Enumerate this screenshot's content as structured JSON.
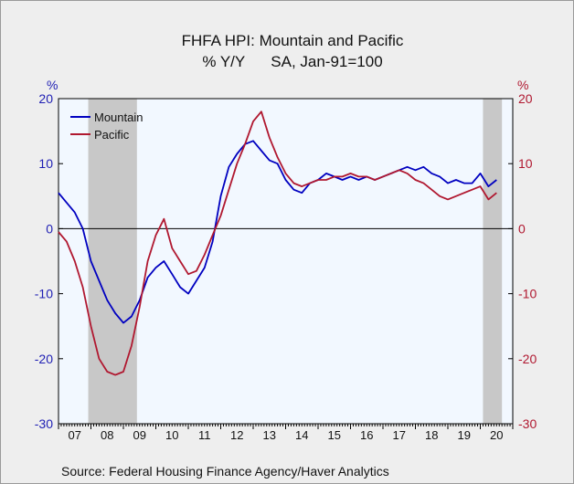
{
  "chart_data": {
    "type": "line",
    "title": "FHFA HPI: Mountain and Pacific",
    "subtitle": "% Y/Y      SA, Jan-91=100",
    "source": "Source:  Federal Housing Finance Agency/Haver Analytics",
    "left_axis_unit": "%",
    "right_axis_unit": "%",
    "ylim": [
      -30,
      20
    ],
    "yticks": [
      -30,
      -20,
      -10,
      0,
      10,
      20
    ],
    "ytick_labels": [
      "-30",
      "-20",
      "-10",
      "0",
      "10",
      "20"
    ],
    "xlim": [
      2007.0,
      2021.0
    ],
    "xtick_labels": [
      "07",
      "08",
      "09",
      "10",
      "11",
      "12",
      "13",
      "14",
      "15",
      "16",
      "17",
      "18",
      "19",
      "20"
    ],
    "grid": false,
    "zero_line": true,
    "legend_position": "top-left",
    "recessions": [
      [
        2007.917,
        2009.417
      ],
      [
        2020.083,
        2020.667
      ]
    ],
    "series": [
      {
        "name": "Mountain",
        "color": "#0000c0",
        "x": [
          2007.0,
          2007.25,
          2007.5,
          2007.75,
          2008.0,
          2008.25,
          2008.5,
          2008.75,
          2009.0,
          2009.25,
          2009.5,
          2009.75,
          2010.0,
          2010.25,
          2010.5,
          2010.75,
          2011.0,
          2011.25,
          2011.5,
          2011.75,
          2012.0,
          2012.25,
          2012.5,
          2012.75,
          2013.0,
          2013.25,
          2013.5,
          2013.75,
          2014.0,
          2014.25,
          2014.5,
          2014.75,
          2015.0,
          2015.25,
          2015.5,
          2015.75,
          2016.0,
          2016.25,
          2016.5,
          2016.75,
          2017.0,
          2017.25,
          2017.5,
          2017.75,
          2018.0,
          2018.25,
          2018.5,
          2018.75,
          2019.0,
          2019.25,
          2019.5,
          2019.75,
          2020.0,
          2020.25,
          2020.5
        ],
        "values": [
          5.5,
          4.0,
          2.5,
          0.0,
          -5.0,
          -8.0,
          -11.0,
          -13.0,
          -14.5,
          -13.5,
          -11.0,
          -7.5,
          -6.0,
          -5.0,
          -7.0,
          -9.0,
          -10.0,
          -8.0,
          -6.0,
          -2.0,
          5.0,
          9.5,
          11.5,
          13.0,
          13.5,
          12.0,
          10.5,
          10.0,
          7.5,
          6.0,
          5.5,
          7.0,
          7.5,
          8.5,
          8.0,
          7.5,
          8.0,
          7.5,
          8.0,
          7.5,
          8.0,
          8.5,
          9.0,
          9.5,
          9.0,
          9.5,
          8.5,
          8.0,
          7.0,
          7.5,
          7.0,
          7.0,
          8.5,
          6.5,
          7.5
        ]
      },
      {
        "name": "Pacific",
        "color": "#b01830",
        "x": [
          2007.0,
          2007.25,
          2007.5,
          2007.75,
          2008.0,
          2008.25,
          2008.5,
          2008.75,
          2009.0,
          2009.25,
          2009.5,
          2009.75,
          2010.0,
          2010.25,
          2010.5,
          2010.75,
          2011.0,
          2011.25,
          2011.5,
          2011.75,
          2012.0,
          2012.25,
          2012.5,
          2012.75,
          2013.0,
          2013.25,
          2013.5,
          2013.75,
          2014.0,
          2014.25,
          2014.5,
          2014.75,
          2015.0,
          2015.25,
          2015.5,
          2015.75,
          2016.0,
          2016.25,
          2016.5,
          2016.75,
          2017.0,
          2017.25,
          2017.5,
          2017.75,
          2018.0,
          2018.25,
          2018.5,
          2018.75,
          2019.0,
          2019.25,
          2019.5,
          2019.75,
          2020.0,
          2020.25,
          2020.5
        ],
        "values": [
          -0.5,
          -2.0,
          -5.0,
          -9.0,
          -15.0,
          -20.0,
          -22.0,
          -22.5,
          -22.0,
          -18.0,
          -12.0,
          -5.0,
          -1.0,
          1.5,
          -3.0,
          -5.0,
          -7.0,
          -6.5,
          -4.0,
          -1.0,
          2.0,
          6.0,
          10.0,
          13.0,
          16.5,
          18.0,
          14.0,
          11.0,
          8.5,
          7.0,
          6.5,
          7.0,
          7.5,
          7.5,
          8.0,
          8.0,
          8.5,
          8.0,
          8.0,
          7.5,
          8.0,
          8.5,
          9.0,
          8.5,
          7.5,
          7.0,
          6.0,
          5.0,
          4.5,
          5.0,
          5.5,
          6.0,
          6.5,
          4.5,
          5.5
        ]
      }
    ]
  }
}
